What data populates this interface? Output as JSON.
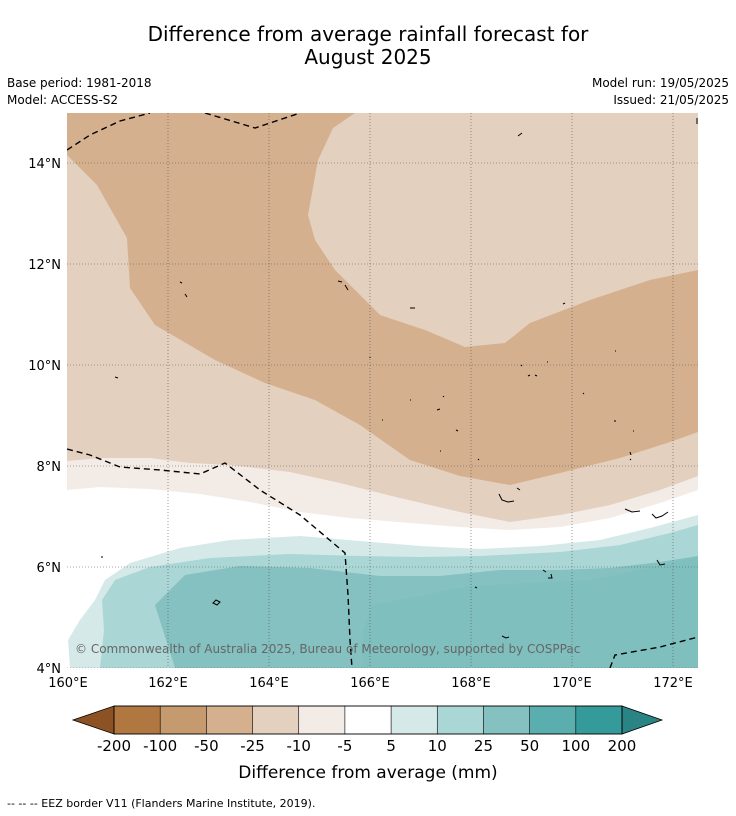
{
  "title_line1": "Difference from average rainfall forecast for",
  "title_line2": "August 2025",
  "base_period": "Base period: 1981-2018",
  "model": "Model: ACCESS-S2",
  "model_run": "Model run: 19/05/2025",
  "issued": "Issued: 21/05/2025",
  "lat_labels": [
    "14°N",
    "12°N",
    "10°N",
    "8°N",
    "6°N",
    "4°N"
  ],
  "lon_labels": [
    "160°E",
    "162°E",
    "164°E",
    "166°E",
    "168°E",
    "170°E",
    "172°E"
  ],
  "copyright": "© Commonwealth of Australia 2025, Bureau of Meteorology, supported by COSPPac",
  "colorbar": {
    "labels": [
      "-200",
      "-100",
      "-50",
      "-25",
      "-10",
      "-5",
      "5",
      "10",
      "25",
      "50",
      "100",
      "200"
    ],
    "colors": [
      "#8c5224",
      "#b07840",
      "#c49a6e",
      "#d4b08e",
      "#e3d0bf",
      "#f3ebe5",
      "#ffffff",
      "#d5e9e8",
      "#aad6d5",
      "#84c1c0",
      "#5aaeae",
      "#349a9a",
      "#2b8484"
    ],
    "label": "Difference from average (mm)"
  },
  "footer": "-- -- -- EEZ border V11 (Flanders Marine Institute, 2019)."
}
